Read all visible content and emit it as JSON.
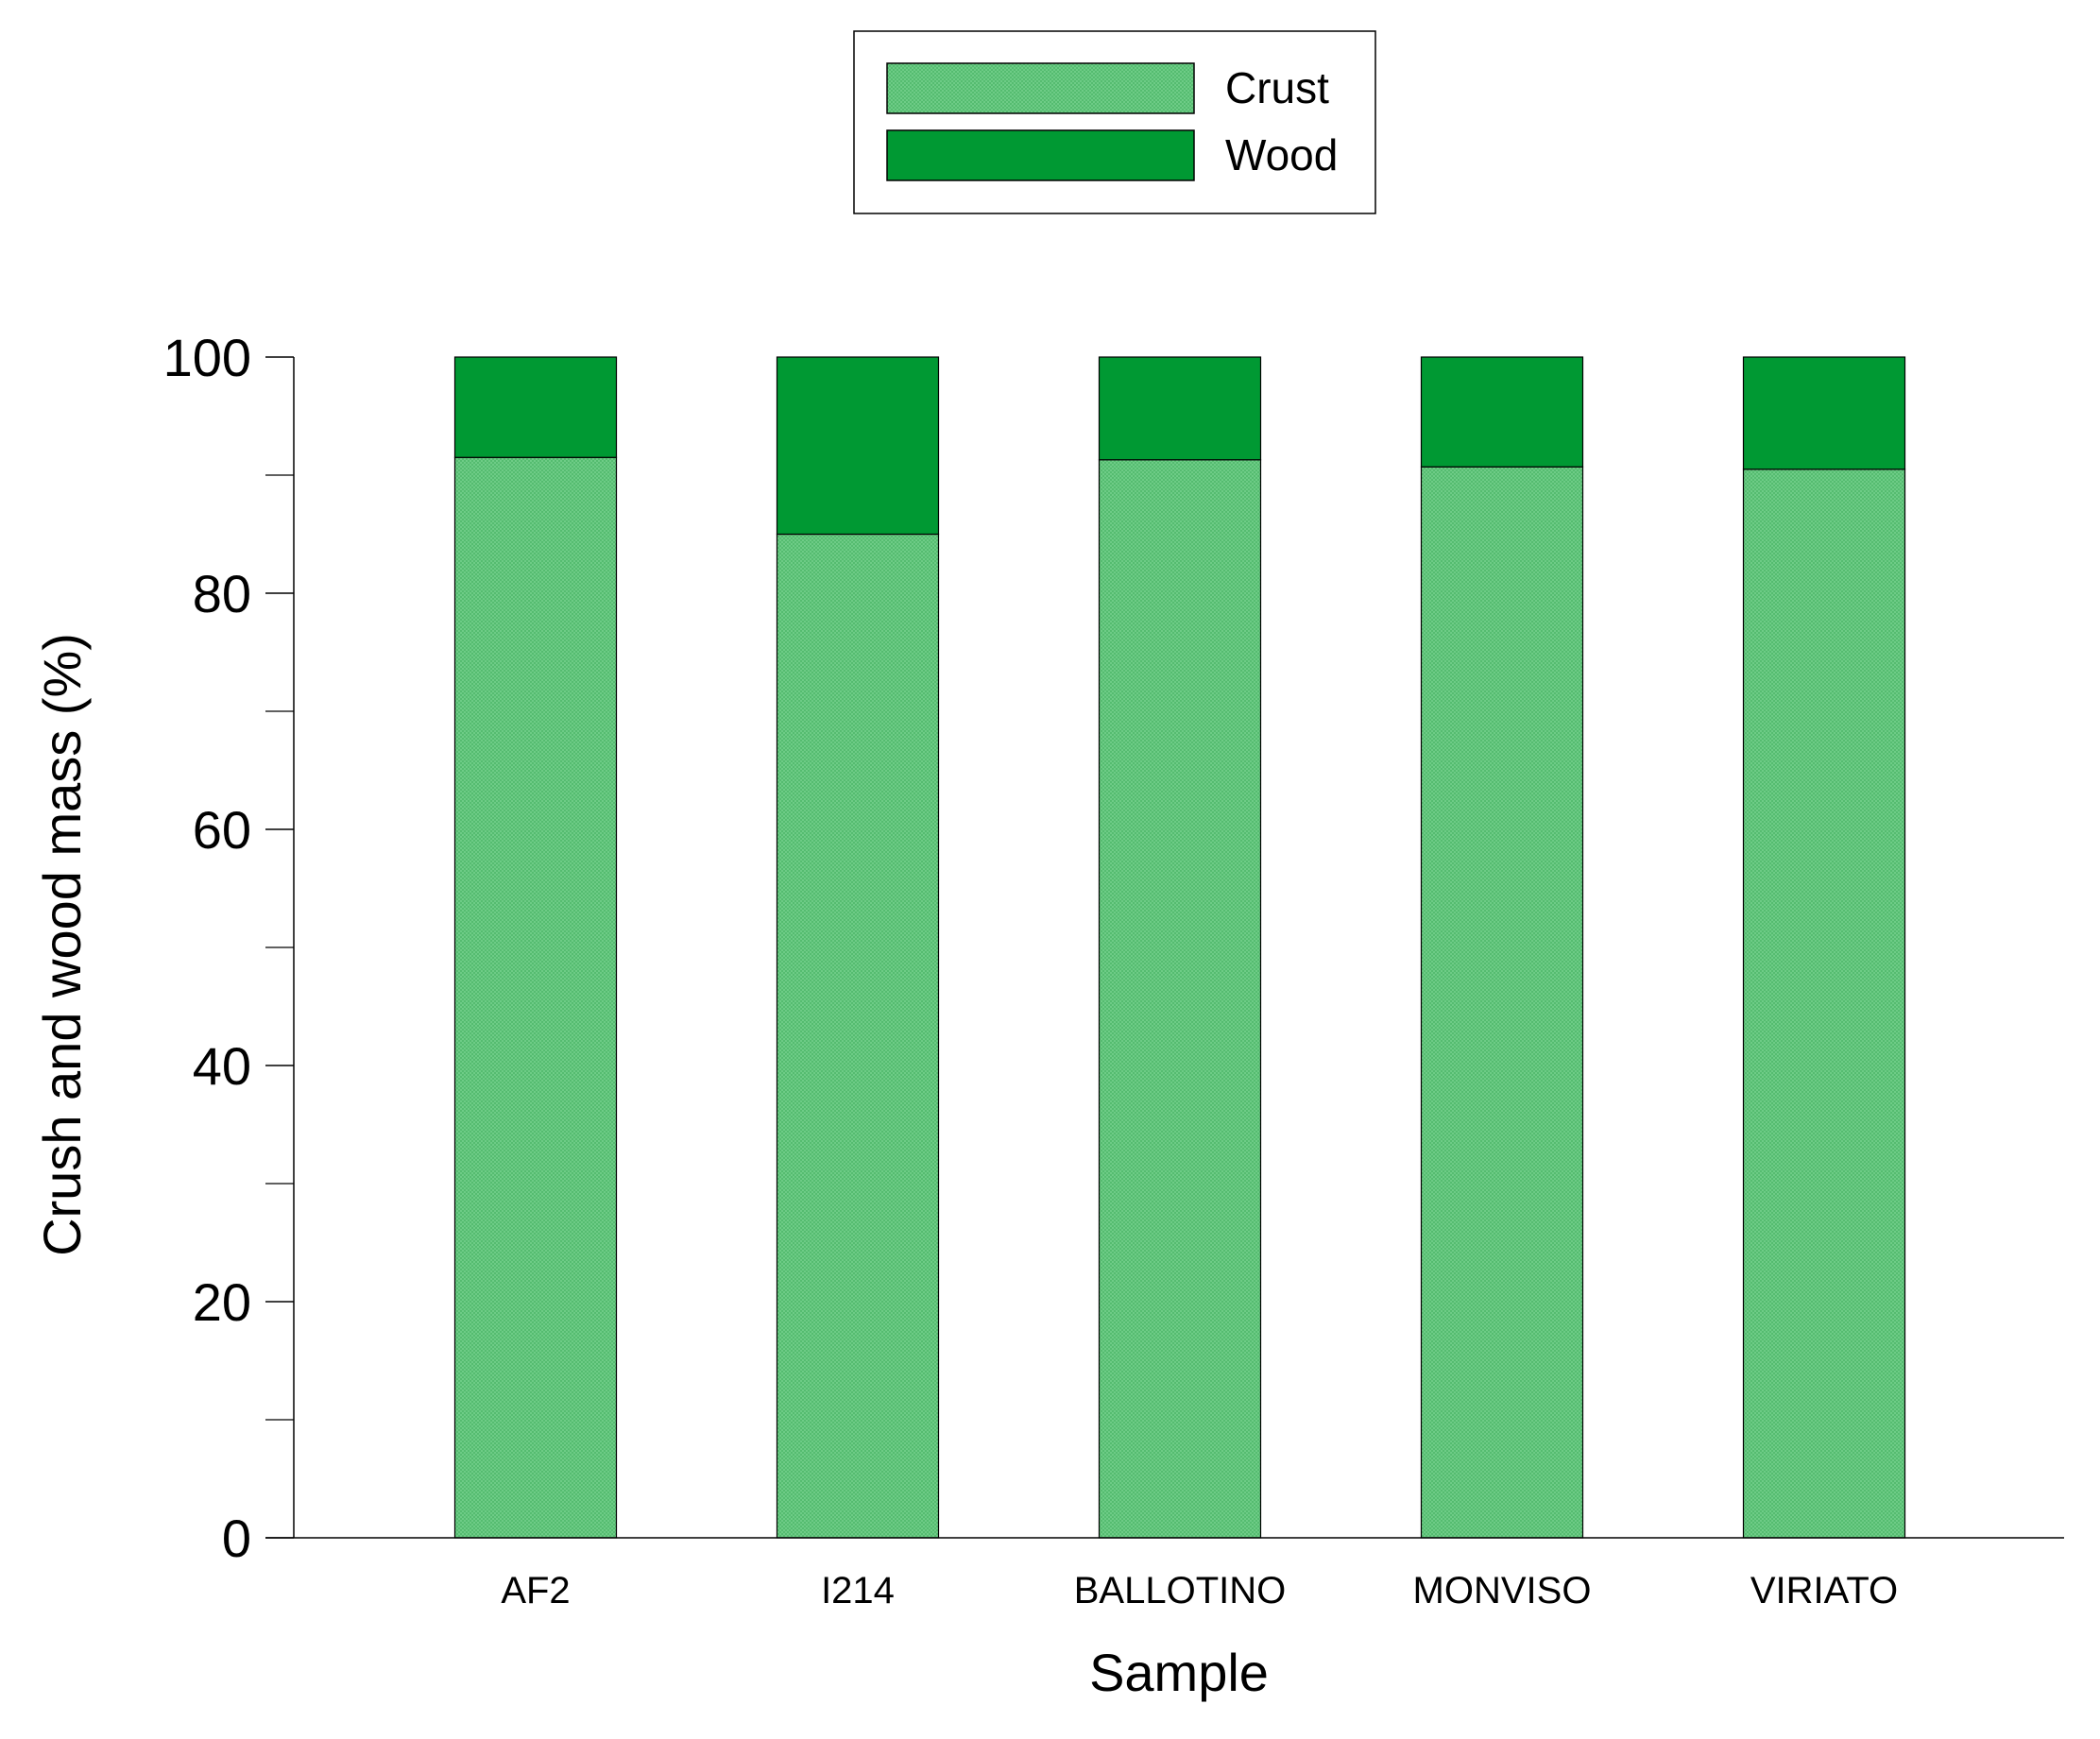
{
  "chart_data": {
    "type": "bar",
    "stacked": true,
    "categories": [
      "AF2",
      "I214",
      "BALLOTINO",
      "MONVISO",
      "VIRIATO"
    ],
    "series": [
      {
        "name": "Crust",
        "values": [
          91.5,
          85.0,
          91.3,
          90.7,
          90.5
        ],
        "color": "#74d08c",
        "pattern": "crosshatch"
      },
      {
        "name": "Wood",
        "values": [
          8.5,
          15.0,
          8.7,
          9.3,
          9.5
        ],
        "color": "#009933"
      }
    ],
    "xlabel": "Sample",
    "ylabel": "Crush and wood mass (%)",
    "ylim": [
      0,
      100
    ],
    "yticks": [
      0,
      20,
      40,
      60,
      80,
      100
    ],
    "yticks_minor": [
      10,
      30,
      50,
      70,
      90
    ],
    "legend_position": "top-center",
    "grid": false
  }
}
